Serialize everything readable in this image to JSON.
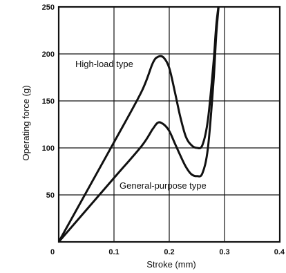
{
  "chart_data": {
    "type": "line",
    "xlabel": "Stroke (mm)",
    "ylabel": "Operating force (g)",
    "xlim": [
      0,
      0.4
    ],
    "ylim": [
      0,
      250
    ],
    "x_ticks": [
      "0",
      "0.1",
      "0.2",
      "0.3",
      "0.4"
    ],
    "y_ticks": [
      "50",
      "100",
      "150",
      "200",
      "250"
    ],
    "grid": true,
    "series": [
      {
        "name": "High-load type",
        "x": [
          0,
          0.05,
          0.1,
          0.15,
          0.17,
          0.18,
          0.19,
          0.2,
          0.21,
          0.22,
          0.23,
          0.24,
          0.25,
          0.26,
          0.27,
          0.28,
          0.285,
          0.29
        ],
        "y": [
          0,
          53,
          106,
          160,
          190,
          197,
          196,
          185,
          160,
          133,
          112,
          103,
          100,
          103,
          130,
          190,
          230,
          255
        ]
      },
      {
        "name": "General-purpose type",
        "x": [
          0,
          0.05,
          0.1,
          0.15,
          0.17,
          0.18,
          0.19,
          0.2,
          0.21,
          0.22,
          0.23,
          0.24,
          0.25,
          0.26,
          0.27,
          0.28,
          0.285,
          0.29
        ],
        "y": [
          0,
          34,
          68,
          102,
          120,
          127,
          125,
          118,
          105,
          92,
          80,
          72,
          70,
          73,
          100,
          170,
          220,
          255
        ]
      }
    ]
  }
}
